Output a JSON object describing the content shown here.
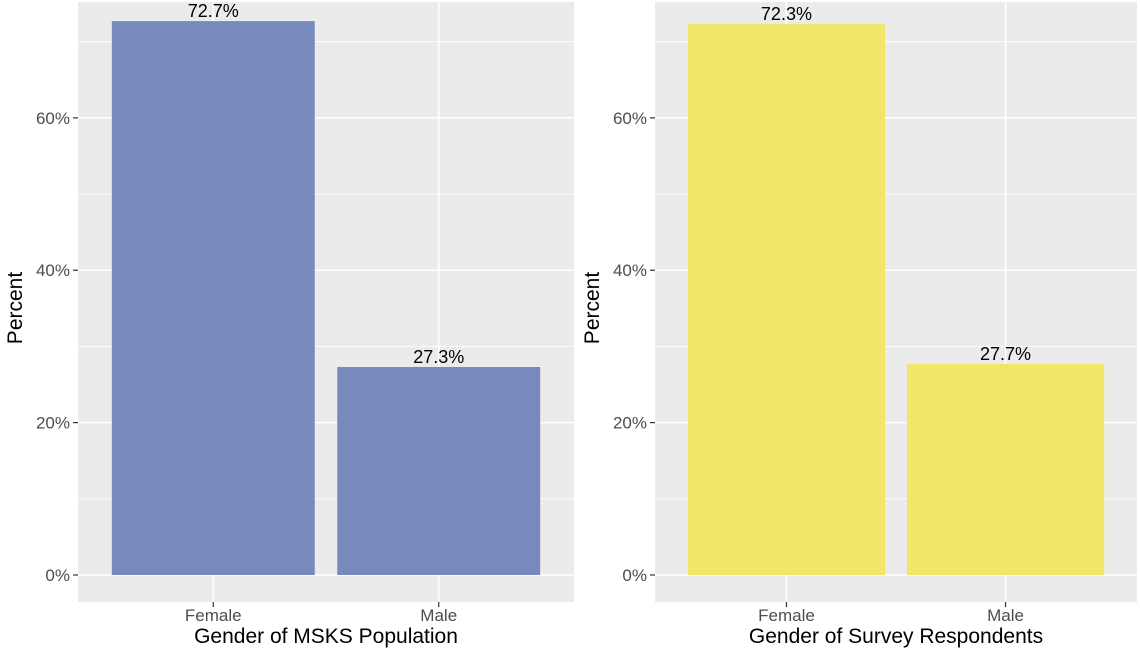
{
  "chart_data": [
    {
      "type": "bar",
      "categories": [
        "Female",
        "Male"
      ],
      "values": [
        72.7,
        27.3
      ],
      "data_labels": [
        "72.7%",
        "27.3%"
      ],
      "xlabel": "Gender of MSKS Population",
      "ylabel": "Percent",
      "ylim": [
        0,
        73.5
      ],
      "yticks": [
        0,
        20,
        40,
        60
      ],
      "ytick_labels": [
        "0%",
        "20%",
        "40%",
        "60%"
      ],
      "bar_color": "#7789BD",
      "panel_background": "#EBEBEB",
      "grid": true,
      "legend": "none"
    },
    {
      "type": "bar",
      "categories": [
        "Female",
        "Male"
      ],
      "values": [
        72.3,
        27.7
      ],
      "data_labels": [
        "72.3%",
        "27.7%"
      ],
      "xlabel": "Gender of Survey Respondents",
      "ylabel": "Percent",
      "ylim": [
        0,
        73.5
      ],
      "yticks": [
        0,
        20,
        40,
        60
      ],
      "ytick_labels": [
        "0%",
        "20%",
        "40%",
        "60%"
      ],
      "bar_color": "#F0E66A",
      "panel_background": "#EBEBEB",
      "grid": true,
      "legend": "none"
    }
  ]
}
